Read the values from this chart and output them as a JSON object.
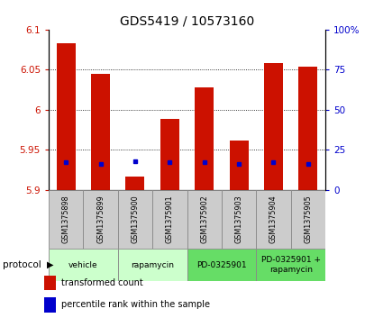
{
  "title": "GDS5419 / 10573160",
  "samples": [
    "GSM1375898",
    "GSM1375899",
    "GSM1375900",
    "GSM1375901",
    "GSM1375902",
    "GSM1375903",
    "GSM1375904",
    "GSM1375905"
  ],
  "transformed_counts": [
    6.083,
    6.044,
    5.916,
    5.988,
    6.028,
    5.961,
    6.058,
    6.054
  ],
  "percentile_ranks": [
    17,
    16,
    18,
    17,
    17,
    16,
    17,
    16
  ],
  "bar_bottom": 5.9,
  "ylim": [
    5.9,
    6.1
  ],
  "y_ticks": [
    5.9,
    5.95,
    6.0,
    6.05,
    6.1
  ],
  "right_ylim": [
    0,
    100
  ],
  "right_yticks": [
    0,
    25,
    50,
    75,
    100
  ],
  "bar_color": "#cc1100",
  "percentile_color": "#0000cc",
  "protocol_groups": [
    {
      "label": "vehicle",
      "start": 0,
      "end": 1,
      "bg": "#ccffcc"
    },
    {
      "label": "rapamycin",
      "start": 2,
      "end": 3,
      "bg": "#ccffcc"
    },
    {
      "label": "PD-0325901",
      "start": 4,
      "end": 5,
      "bg": "#66dd66"
    },
    {
      "label": "PD-0325901 +\nrapamycin",
      "start": 6,
      "end": 7,
      "bg": "#66dd66"
    }
  ],
  "legend_items": [
    {
      "color": "#cc1100",
      "label": "transformed count"
    },
    {
      "color": "#0000cc",
      "label": "percentile rank within the sample"
    }
  ],
  "bar_width": 0.55,
  "sample_bg": "#cccccc",
  "grid_color": "black",
  "grid_lw": 0.6
}
